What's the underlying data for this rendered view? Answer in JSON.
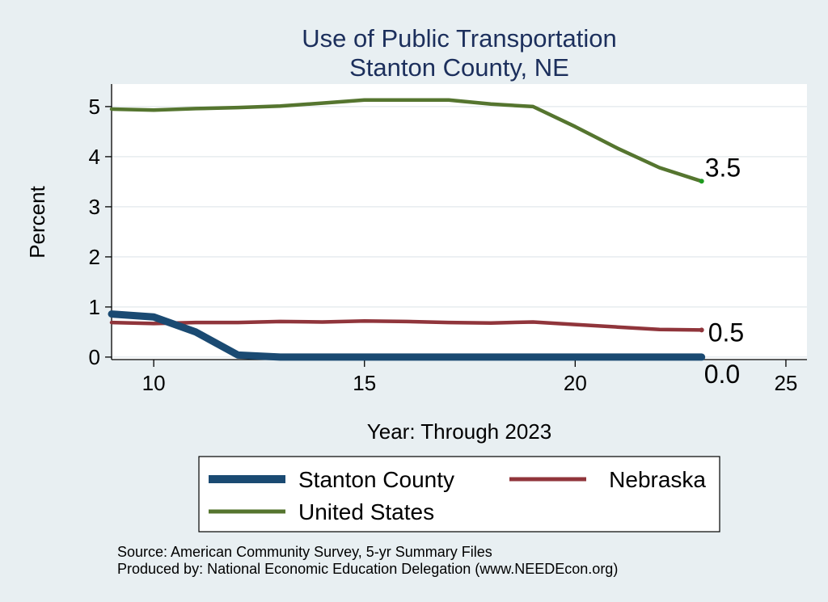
{
  "chart_data": {
    "type": "line",
    "title": [
      "Use of Public Transportation",
      "Stanton County, NE"
    ],
    "xlabel": "Year: Through 2023",
    "ylabel": "Percent",
    "xlim": [
      9,
      25.5
    ],
    "ylim": [
      -0.05,
      5.45
    ],
    "xticks": [
      10,
      15,
      20,
      25
    ],
    "yticks": [
      0,
      1,
      2,
      3,
      4,
      5
    ],
    "grid": true,
    "legend_position": "bottom",
    "x": [
      9,
      10,
      11,
      12,
      13,
      14,
      15,
      16,
      17,
      18,
      19,
      20,
      21,
      22,
      23
    ],
    "series": [
      {
        "name": "Stanton County",
        "color": "#1a4a72",
        "values": [
          0.86,
          0.8,
          0.5,
          0.04,
          0.0,
          0.0,
          0.0,
          0.0,
          0.0,
          0.0,
          0.0,
          0.0,
          0.0,
          0.0,
          0.0
        ],
        "end_label": "0.0"
      },
      {
        "name": "Nebraska",
        "color": "#90353b",
        "values": [
          0.69,
          0.67,
          0.69,
          0.69,
          0.71,
          0.7,
          0.72,
          0.71,
          0.69,
          0.68,
          0.7,
          0.65,
          0.6,
          0.55,
          0.54
        ],
        "end_label": "0.5"
      },
      {
        "name": "United States",
        "color": "#55752f",
        "values": [
          4.95,
          4.93,
          4.96,
          4.98,
          5.01,
          5.07,
          5.13,
          5.13,
          5.13,
          5.05,
          5.0,
          4.6,
          4.17,
          3.78,
          3.51
        ],
        "end_label": "3.5"
      }
    ],
    "source_lines": [
      "Source: American Community Survey, 5-yr Summary Files",
      "Produced by: National Economic Education Delegation (www.NEEDEcon.org)"
    ]
  }
}
